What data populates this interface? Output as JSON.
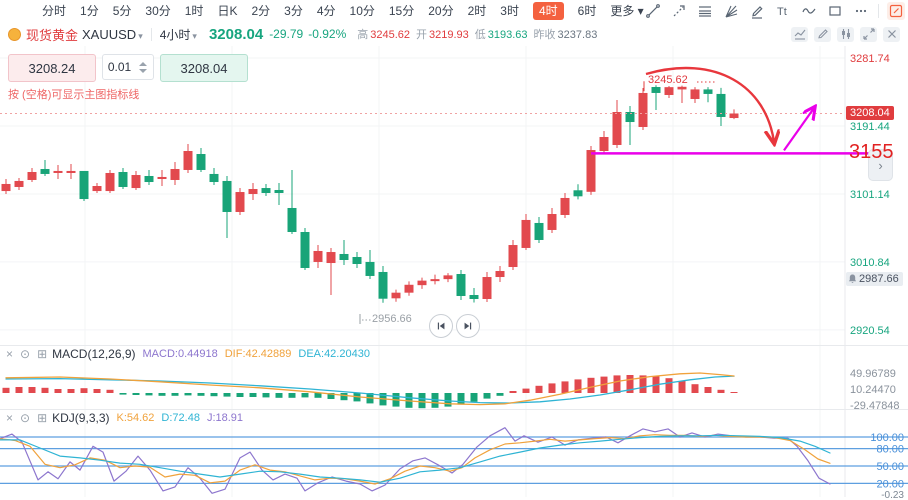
{
  "toolbar": {
    "timeframes": [
      "分时",
      "1分",
      "5分",
      "30分",
      "1时",
      "日K",
      "2分",
      "3分",
      "4分",
      "10分",
      "15分",
      "20分",
      "2时",
      "3时",
      "4时",
      "6时"
    ],
    "active_timeframe": "4时",
    "more_label": "更多",
    "tools": [
      "trend-line",
      "arrow-line",
      "fib-retracement",
      "gann-fan",
      "brush",
      "text-tool",
      "wave",
      "rectangle",
      "more-tools",
      "edit",
      "eraser",
      "magnet",
      "unlock",
      "visibility",
      "delete"
    ]
  },
  "icons": {
    "caret": "▾",
    "chevron": "›",
    "close_glyph": "×",
    "settings_glyph": "⊙",
    "add_glyph": "⊞",
    "text_tool_glyph": "Tt"
  },
  "symbol_bar": {
    "name": "现货黄金",
    "code": "XAUUSD",
    "interval": "4小时",
    "price": "3208.04",
    "change": "-29.79",
    "change_pct": "-0.92%",
    "high_label": "高",
    "high": "3245.62",
    "open_label": "开",
    "open": "3219.93",
    "low_label": "低",
    "low": "3193.63",
    "prev_close_label": "昨收",
    "prev_close": "3237.83"
  },
  "trade_panel": {
    "sell_price": "3208.24",
    "step": "0.01",
    "buy_price": "3208.04",
    "hint": "按 (空格)可显示主图指标线"
  },
  "overlays": {
    "current_price_badge": "3208.04",
    "alert_price_badge": "2987.66",
    "hline_label": "3155",
    "high_annotation": "3245.62",
    "low_annotation": "2956.66"
  },
  "macd_panel": {
    "title": "MACD(12,26,9)",
    "macd_label": "MACD:0.44918",
    "dif_label": "DIF:42.42889",
    "dea_label": "DEA:42.20430"
  },
  "kdj_panel": {
    "title": "KDJ(9,3,3)",
    "k_label": "K:54.62",
    "d_label": "D:72.48",
    "j_label": "J:18.91"
  },
  "colors": {
    "up": "#e2494e",
    "down": "#18a478",
    "accent": "#f4613f",
    "magenta": "#ea00ea",
    "arc_red": "#e8373d",
    "current_line": "#f0a3a3",
    "dif": "#f0a23c",
    "dea": "#2fb4d4",
    "j": "#8d76ce",
    "level_blue": "#5e9fe0",
    "axis_red": "#e03c3e",
    "axis_green": "#17a57f",
    "grid": "#f3f4f6",
    "separator": "#e8eaed"
  },
  "chart_data": {
    "type": "candlestick",
    "symbol": "XAUUSD",
    "interval": "4小时",
    "prev_close": 3237.83,
    "y_ticks": [
      3281.74,
      3191.44,
      3101.14,
      3010.84,
      2920.54
    ],
    "candles": [
      [
        3105.0,
        3121.0,
        3101.1,
        3114.4
      ],
      [
        3110.4,
        3122.4,
        3106.4,
        3118.4
      ],
      [
        3119.7,
        3135.7,
        3117.0,
        3130.3
      ],
      [
        3134.3,
        3146.3,
        3125.0,
        3127.7
      ],
      [
        3129.0,
        3139.6,
        3121.0,
        3131.7
      ],
      [
        3129.0,
        3141.0,
        3121.0,
        3131.7
      ],
      [
        3131.7,
        3131.7,
        3091.8,
        3094.4
      ],
      [
        3105.0,
        3115.7,
        3102.4,
        3111.7
      ],
      [
        3105.0,
        3133.0,
        3102.4,
        3129.0
      ],
      [
        3130.3,
        3135.7,
        3107.7,
        3110.4
      ],
      [
        3109.0,
        3131.7,
        3106.4,
        3126.3
      ],
      [
        3125.0,
        3133.0,
        3113.0,
        3117.0
      ],
      [
        3121.0,
        3133.0,
        3111.7,
        3123.7
      ],
      [
        3119.7,
        3143.6,
        3113.0,
        3134.3
      ],
      [
        3133.0,
        3167.5,
        3129.0,
        3158.2
      ],
      [
        3154.2,
        3162.2,
        3130.3,
        3133.0
      ],
      [
        3127.7,
        3135.7,
        3113.0,
        3117.0
      ],
      [
        3118.4,
        3125.0,
        3042.6,
        3077.2
      ],
      [
        3077.2,
        3109.0,
        3073.2,
        3103.7
      ],
      [
        3101.1,
        3115.7,
        3093.1,
        3107.7
      ],
      [
        3109.0,
        3114.4,
        3098.4,
        3102.4
      ],
      [
        3106.4,
        3115.7,
        3086.5,
        3102.4
      ],
      [
        3082.5,
        3133.0,
        3048.0,
        3050.6
      ],
      [
        3050.6,
        3055.9,
        3000.1,
        3002.8
      ],
      [
        3010.8,
        3033.3,
        3002.8,
        3025.4
      ],
      [
        3009.4,
        3029.4,
        2966.9,
        3024.0
      ],
      [
        3021.4,
        3040.0,
        3006.8,
        3013.4
      ],
      [
        3017.4,
        3024.0,
        3002.8,
        3008.1
      ],
      [
        3010.8,
        3026.7,
        2988.2,
        2992.2
      ],
      [
        2997.5,
        3005.5,
        2956.66,
        2962.0
      ],
      [
        2962.5,
        2974.0,
        2958.0,
        2970.0
      ],
      [
        2970.0,
        2985.0,
        2966.0,
        2980.5
      ],
      [
        2980.0,
        2990.0,
        2975.0,
        2986.0
      ],
      [
        2986.0,
        2994.0,
        2981.0,
        2988.0
      ],
      [
        2988.0,
        2996.0,
        2984.0,
        2993.0
      ],
      [
        2994.8,
        3000.1,
        2960.3,
        2965.6
      ],
      [
        2966.9,
        2976.2,
        2957.0,
        2961.6
      ],
      [
        2961.6,
        2997.5,
        2957.6,
        2990.8
      ],
      [
        2990.8,
        3005.5,
        2984.2,
        2998.8
      ],
      [
        3004.1,
        3040.0,
        3000.1,
        3033.3
      ],
      [
        3029.4,
        3074.5,
        3026.7,
        3066.6
      ],
      [
        3062.6,
        3070.5,
        3036.0,
        3040.0
      ],
      [
        3053.3,
        3082.5,
        3049.3,
        3074.5
      ],
      [
        3073.2,
        3102.4,
        3069.2,
        3095.8
      ],
      [
        3106.0,
        3114.0,
        3094.0,
        3098.0
      ],
      [
        3104.0,
        3164.8,
        3100.0,
        3159.5
      ],
      [
        3158.2,
        3184.8,
        3154.2,
        3176.8
      ],
      [
        3166.2,
        3226.0,
        3162.2,
        3210.0
      ],
      [
        3210.0,
        3218.0,
        3166.2,
        3196.7
      ],
      [
        3190.1,
        3241.9,
        3186.1,
        3235.3
      ],
      [
        3243.2,
        3245.62,
        3212.7,
        3235.3
      ],
      [
        3232.6,
        3244.5,
        3228.6,
        3243.0
      ],
      [
        3240.0,
        3245.0,
        3222.0,
        3243.5
      ],
      [
        3227.3,
        3243.0,
        3222.0,
        3240.0
      ],
      [
        3240.0,
        3243.0,
        3223.0,
        3234.0
      ],
      [
        3234.0,
        3242.0,
        3191.4,
        3203.4
      ],
      [
        3202.0,
        3213.5,
        3200.5,
        3208.04
      ]
    ],
    "annotations": {
      "horizontal_line_price": 3155,
      "current_price": 3208.04,
      "alert_price": 2987.66,
      "high_label_price": 3245.62,
      "low_label_price": 2956.66
    },
    "macd": {
      "axis_values": [
        49.96789,
        10.2447,
        -29.47848
      ],
      "hist": [
        13,
        15,
        15,
        13,
        10,
        10,
        12,
        10,
        8,
        -4,
        -5,
        -6,
        -7,
        -7,
        -6,
        -7,
        -8,
        -9,
        -10,
        -10,
        -11,
        -12,
        -12,
        -11,
        -12,
        -15,
        -18,
        -21,
        -26,
        -31,
        -34,
        -37,
        -38,
        -37,
        -34,
        -29,
        -22,
        -14,
        -7,
        5,
        11,
        18,
        24,
        29,
        34,
        38,
        41,
        44,
        45,
        44,
        42,
        37,
        30,
        22,
        15,
        8,
        0.45
      ],
      "dif": [
        [
          6,
          38
        ],
        [
          60,
          40
        ],
        [
          110,
          35
        ],
        [
          160,
          28
        ],
        [
          210,
          20
        ],
        [
          260,
          13
        ],
        [
          310,
          3
        ],
        [
          360,
          -10
        ],
        [
          410,
          -20
        ],
        [
          450,
          -27
        ],
        [
          480,
          -29
        ],
        [
          505,
          -27
        ],
        [
          530,
          -18
        ],
        [
          560,
          -3
        ],
        [
          590,
          14
        ],
        [
          620,
          30
        ],
        [
          650,
          41
        ],
        [
          680,
          48
        ],
        [
          700,
          50
        ],
        [
          720,
          46
        ],
        [
          734,
          42.4
        ]
      ],
      "dea": [
        [
          6,
          35
        ],
        [
          60,
          36
        ],
        [
          110,
          33
        ],
        [
          160,
          30
        ],
        [
          210,
          25
        ],
        [
          260,
          18
        ],
        [
          310,
          10
        ],
        [
          360,
          0
        ],
        [
          410,
          -12
        ],
        [
          450,
          -20
        ],
        [
          480,
          -24
        ],
        [
          510,
          -25
        ],
        [
          540,
          -22
        ],
        [
          570,
          -15
        ],
        [
          600,
          -5
        ],
        [
          630,
          8
        ],
        [
          660,
          22
        ],
        [
          690,
          33
        ],
        [
          715,
          40
        ],
        [
          734,
          42.2
        ]
      ]
    },
    "kdj": {
      "levels": [
        100,
        80,
        50,
        20
      ],
      "axis_labels": [
        "100.00",
        "80.00",
        "50.00",
        "20.00",
        "-0.23"
      ],
      "k": [
        [
          0,
          97
        ],
        [
          15,
          94
        ],
        [
          30,
          84
        ],
        [
          45,
          53
        ],
        [
          60,
          47
        ],
        [
          75,
          52
        ],
        [
          90,
          64
        ],
        [
          105,
          60
        ],
        [
          120,
          47
        ],
        [
          135,
          50
        ],
        [
          150,
          48
        ],
        [
          165,
          31
        ],
        [
          180,
          36
        ],
        [
          195,
          34
        ],
        [
          210,
          21
        ],
        [
          225,
          24
        ],
        [
          240,
          43
        ],
        [
          255,
          52
        ],
        [
          270,
          43
        ],
        [
          285,
          40
        ],
        [
          300,
          33
        ],
        [
          315,
          26
        ],
        [
          330,
          29
        ],
        [
          345,
          28
        ],
        [
          360,
          24
        ],
        [
          375,
          19
        ],
        [
          390,
          28
        ],
        [
          405,
          41
        ],
        [
          420,
          50
        ],
        [
          435,
          47
        ],
        [
          450,
          41
        ],
        [
          462,
          47
        ],
        [
          475,
          64
        ],
        [
          490,
          78
        ],
        [
          505,
          88
        ],
        [
          520,
          90
        ],
        [
          535,
          93
        ],
        [
          550,
          96
        ],
        [
          565,
          93
        ],
        [
          580,
          95
        ],
        [
          595,
          97
        ],
        [
          610,
          99
        ],
        [
          625,
          97
        ],
        [
          640,
          102
        ],
        [
          655,
          104
        ],
        [
          670,
          103
        ],
        [
          685,
          103
        ],
        [
          700,
          101
        ],
        [
          715,
          103
        ],
        [
          730,
          101
        ],
        [
          745,
          100
        ],
        [
          760,
          100
        ],
        [
          775,
          99
        ],
        [
          790,
          94
        ],
        [
          805,
          78
        ],
        [
          818,
          62
        ],
        [
          830,
          54.62
        ]
      ],
      "d": [
        [
          0,
          95
        ],
        [
          20,
          95
        ],
        [
          40,
          81
        ],
        [
          60,
          67
        ],
        [
          80,
          64
        ],
        [
          100,
          60
        ],
        [
          120,
          55
        ],
        [
          140,
          53
        ],
        [
          160,
          47
        ],
        [
          180,
          41
        ],
        [
          200,
          36
        ],
        [
          220,
          31
        ],
        [
          240,
          36
        ],
        [
          260,
          41
        ],
        [
          280,
          40
        ],
        [
          300,
          36
        ],
        [
          320,
          31
        ],
        [
          340,
          29
        ],
        [
          360,
          26
        ],
        [
          380,
          22
        ],
        [
          400,
          29
        ],
        [
          420,
          40
        ],
        [
          440,
          43
        ],
        [
          460,
          47
        ],
        [
          480,
          57
        ],
        [
          500,
          67
        ],
        [
          520,
          74
        ],
        [
          540,
          81
        ],
        [
          560,
          86
        ],
        [
          580,
          90
        ],
        [
          600,
          93
        ],
        [
          620,
          96
        ],
        [
          640,
          99
        ],
        [
          660,
          101
        ],
        [
          680,
          102
        ],
        [
          700,
          102
        ],
        [
          720,
          103
        ],
        [
          740,
          102
        ],
        [
          760,
          101
        ],
        [
          780,
          99
        ],
        [
          800,
          93
        ],
        [
          815,
          84
        ],
        [
          830,
          72.48
        ]
      ],
      "j": [
        [
          0,
          97
        ],
        [
          12,
          105
        ],
        [
          22,
          91
        ],
        [
          38,
          26
        ],
        [
          48,
          40
        ],
        [
          58,
          28
        ],
        [
          70,
          57
        ],
        [
          80,
          43
        ],
        [
          93,
          84
        ],
        [
          103,
          74
        ],
        [
          114,
          24
        ],
        [
          126,
          41
        ],
        [
          138,
          67
        ],
        [
          150,
          43
        ],
        [
          163,
          7
        ],
        [
          175,
          14
        ],
        [
          188,
          47
        ],
        [
          200,
          29
        ],
        [
          212,
          3
        ],
        [
          225,
          10
        ],
        [
          240,
          64
        ],
        [
          250,
          74
        ],
        [
          262,
          43
        ],
        [
          273,
          26
        ],
        [
          285,
          36
        ],
        [
          297,
          29
        ],
        [
          305,
          7
        ],
        [
          318,
          21
        ],
        [
          332,
          31
        ],
        [
          346,
          24
        ],
        [
          360,
          19
        ],
        [
          372,
          7
        ],
        [
          385,
          17
        ],
        [
          400,
          45
        ],
        [
          413,
          59
        ],
        [
          425,
          64
        ],
        [
          438,
          52
        ],
        [
          452,
          38
        ],
        [
          463,
          53
        ],
        [
          477,
          83
        ],
        [
          490,
          102
        ],
        [
          505,
          116
        ],
        [
          515,
          93
        ],
        [
          524,
          102
        ],
        [
          538,
          91
        ],
        [
          552,
          100
        ],
        [
          565,
          86
        ],
        [
          578,
          95
        ],
        [
          592,
          98
        ],
        [
          606,
          100
        ],
        [
          618,
          90
        ],
        [
          630,
          102
        ],
        [
          643,
          114
        ],
        [
          655,
          109
        ],
        [
          668,
          114
        ],
        [
          680,
          100
        ],
        [
          692,
          107
        ],
        [
          705,
          100
        ],
        [
          718,
          105
        ],
        [
          732,
          102
        ],
        [
          746,
          100
        ],
        [
          760,
          100
        ],
        [
          774,
          98
        ],
        [
          788,
          98
        ],
        [
          797,
          84
        ],
        [
          808,
          59
        ],
        [
          819,
          29
        ],
        [
          830,
          18.91
        ]
      ]
    }
  }
}
